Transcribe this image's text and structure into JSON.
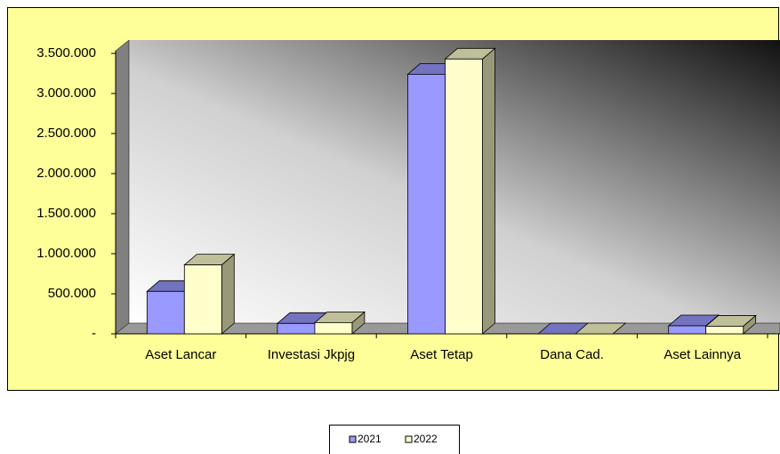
{
  "chart_data": {
    "type": "bar3d",
    "categories": [
      "Aset Lancar",
      "Investasi Jkpjg",
      "Aset Tetap",
      "Dana Cad.",
      "Aset Lainnya"
    ],
    "series": [
      {
        "name": "2021",
        "color": "#9999ff",
        "values": [
          530000,
          130000,
          3240000,
          0,
          100000
        ]
      },
      {
        "name": "2022",
        "color": "#ffffcc",
        "values": [
          860000,
          140000,
          3430000,
          0,
          95000
        ]
      }
    ],
    "ylim": [
      0,
      3500000
    ],
    "yticks": [
      {
        "value": 0,
        "label": "-"
      },
      {
        "value": 500000,
        "label": "500.000"
      },
      {
        "value": 1000000,
        "label": "1.000.000"
      },
      {
        "value": 1500000,
        "label": "1.500.000"
      },
      {
        "value": 2000000,
        "label": "2.000.000"
      },
      {
        "value": 2500000,
        "label": "2.500.000"
      },
      {
        "value": 3000000,
        "label": "3.000.000"
      },
      {
        "value": 3500000,
        "label": "3.500.000"
      }
    ],
    "grid": false,
    "legend": "bottom"
  }
}
